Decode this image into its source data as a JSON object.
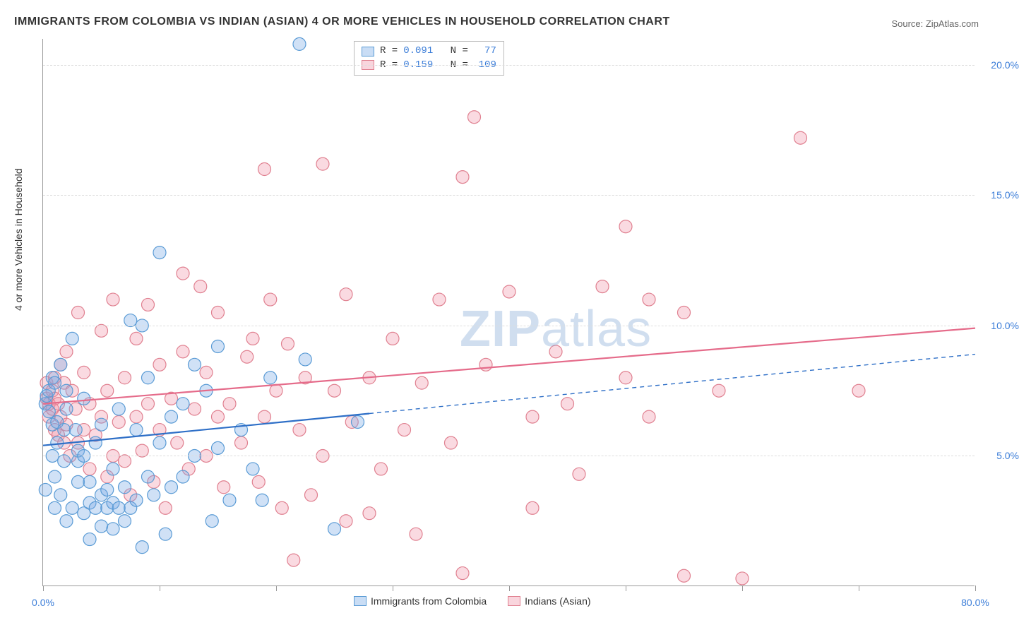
{
  "title": "IMMIGRANTS FROM COLOMBIA VS INDIAN (ASIAN) 4 OR MORE VEHICLES IN HOUSEHOLD CORRELATION CHART",
  "source": "Source: ZipAtlas.com",
  "watermark_a": "ZIP",
  "watermark_b": "atlas",
  "y_axis_label": "4 or more Vehicles in Household",
  "chart": {
    "type": "scatter",
    "background_color": "#ffffff",
    "grid_color": "#dddddd",
    "axis_color": "#999999",
    "xlim": [
      0,
      80
    ],
    "ylim": [
      0,
      21
    ],
    "x_ticks": [
      0,
      10,
      20,
      30,
      40,
      50,
      60,
      70,
      80
    ],
    "x_tick_labels": {
      "0": "0.0%",
      "80": "80.0%"
    },
    "y_ticks": [
      5,
      10,
      15,
      20
    ],
    "y_tick_labels": {
      "5": "5.0%",
      "10": "10.0%",
      "15": "15.0%",
      "20": "20.0%"
    },
    "tick_label_color": "#3b7dd8",
    "marker_radius": 9,
    "marker_stroke_width": 1.2,
    "series": {
      "blue": {
        "label": "Immigrants from Colombia",
        "fill": "rgba(120,170,230,0.35)",
        "stroke": "#5a9bd5",
        "R": "0.091",
        "N": "77",
        "regression": {
          "x1": 0,
          "y1": 5.4,
          "x2": 80,
          "y2": 8.9,
          "solid_until_x": 28,
          "color": "#2e6fc7",
          "width": 2.2
        },
        "points": [
          [
            0.2,
            7.0
          ],
          [
            0.3,
            7.3
          ],
          [
            0.5,
            6.7
          ],
          [
            0.5,
            7.5
          ],
          [
            0.8,
            6.2
          ],
          [
            0.8,
            8.0
          ],
          [
            0.8,
            5.0
          ],
          [
            1.0,
            4.2
          ],
          [
            1.0,
            3.0
          ],
          [
            1.0,
            7.8
          ],
          [
            1.2,
            5.5
          ],
          [
            1.2,
            6.3
          ],
          [
            1.5,
            8.5
          ],
          [
            1.5,
            3.5
          ],
          [
            1.8,
            4.8
          ],
          [
            1.8,
            6.0
          ],
          [
            2.0,
            2.5
          ],
          [
            2.0,
            6.8
          ],
          [
            2.0,
            7.5
          ],
          [
            0.2,
            3.7
          ],
          [
            2.5,
            3.0
          ],
          [
            2.5,
            9.5
          ],
          [
            2.8,
            6.0
          ],
          [
            3.0,
            4.0
          ],
          [
            3.0,
            4.8
          ],
          [
            3.0,
            5.2
          ],
          [
            3.5,
            2.8
          ],
          [
            3.5,
            5.0
          ],
          [
            3.5,
            7.2
          ],
          [
            4.0,
            3.2
          ],
          [
            4.0,
            4.0
          ],
          [
            4.0,
            1.8
          ],
          [
            4.5,
            3.0
          ],
          [
            4.5,
            5.5
          ],
          [
            5.0,
            2.3
          ],
          [
            5.0,
            3.5
          ],
          [
            5.0,
            6.2
          ],
          [
            5.5,
            3.0
          ],
          [
            5.5,
            3.7
          ],
          [
            6.0,
            2.2
          ],
          [
            6.0,
            3.2
          ],
          [
            6.0,
            4.5
          ],
          [
            6.5,
            3.0
          ],
          [
            6.5,
            6.8
          ],
          [
            7.0,
            2.5
          ],
          [
            7.0,
            3.8
          ],
          [
            7.5,
            10.2
          ],
          [
            7.5,
            3.0
          ],
          [
            8.0,
            3.3
          ],
          [
            8.0,
            6.0
          ],
          [
            8.5,
            1.5
          ],
          [
            8.5,
            10.0
          ],
          [
            9.0,
            4.2
          ],
          [
            9.0,
            8.0
          ],
          [
            9.5,
            3.5
          ],
          [
            10.0,
            5.5
          ],
          [
            10.0,
            12.8
          ],
          [
            10.5,
            2.0
          ],
          [
            11.0,
            3.8
          ],
          [
            11.0,
            6.5
          ],
          [
            12.0,
            4.2
          ],
          [
            12.0,
            7.0
          ],
          [
            13.0,
            5.0
          ],
          [
            13.0,
            8.5
          ],
          [
            14.0,
            7.5
          ],
          [
            14.5,
            2.5
          ],
          [
            15.0,
            5.3
          ],
          [
            15.0,
            9.2
          ],
          [
            16.0,
            3.3
          ],
          [
            17.0,
            6.0
          ],
          [
            18.0,
            4.5
          ],
          [
            18.8,
            3.3
          ],
          [
            19.5,
            8.0
          ],
          [
            22.0,
            20.8
          ],
          [
            22.5,
            8.7
          ],
          [
            25.0,
            2.2
          ],
          [
            27.0,
            6.3
          ]
        ]
      },
      "pink": {
        "label": "Indians (Asian)",
        "fill": "rgba(240,150,170,0.35)",
        "stroke": "#e08090",
        "R": "0.159",
        "N": "109",
        "regression": {
          "x1": 0,
          "y1": 7.0,
          "x2": 80,
          "y2": 9.9,
          "solid_until_x": 80,
          "color": "#e56b8a",
          "width": 2.2
        },
        "points": [
          [
            0.3,
            7.2
          ],
          [
            0.3,
            7.8
          ],
          [
            0.5,
            6.5
          ],
          [
            0.5,
            7.0
          ],
          [
            0.8,
            6.8
          ],
          [
            0.8,
            7.5
          ],
          [
            1.0,
            6.0
          ],
          [
            1.0,
            7.2
          ],
          [
            1.0,
            8.0
          ],
          [
            1.3,
            5.8
          ],
          [
            1.3,
            7.0
          ],
          [
            1.5,
            6.5
          ],
          [
            1.5,
            8.5
          ],
          [
            1.8,
            5.5
          ],
          [
            1.8,
            7.8
          ],
          [
            2.0,
            6.2
          ],
          [
            2.0,
            9.0
          ],
          [
            2.3,
            5.0
          ],
          [
            2.5,
            7.5
          ],
          [
            2.8,
            6.8
          ],
          [
            3.0,
            5.5
          ],
          [
            3.0,
            10.5
          ],
          [
            3.5,
            6.0
          ],
          [
            3.5,
            8.2
          ],
          [
            4.0,
            4.5
          ],
          [
            4.0,
            7.0
          ],
          [
            4.5,
            5.8
          ],
          [
            5.0,
            6.5
          ],
          [
            5.0,
            9.8
          ],
          [
            5.5,
            4.2
          ],
          [
            5.5,
            7.5
          ],
          [
            6.0,
            5.0
          ],
          [
            6.0,
            11.0
          ],
          [
            6.5,
            6.3
          ],
          [
            7.0,
            4.8
          ],
          [
            7.0,
            8.0
          ],
          [
            7.5,
            3.5
          ],
          [
            8.0,
            6.5
          ],
          [
            8.0,
            9.5
          ],
          [
            8.5,
            5.2
          ],
          [
            9.0,
            7.0
          ],
          [
            9.0,
            10.8
          ],
          [
            9.5,
            4.0
          ],
          [
            10.0,
            6.0
          ],
          [
            10.0,
            8.5
          ],
          [
            10.5,
            3.0
          ],
          [
            11.0,
            7.2
          ],
          [
            11.5,
            5.5
          ],
          [
            12.0,
            9.0
          ],
          [
            12.0,
            12.0
          ],
          [
            12.5,
            4.5
          ],
          [
            13.0,
            6.8
          ],
          [
            13.5,
            11.5
          ],
          [
            14.0,
            5.0
          ],
          [
            14.0,
            8.2
          ],
          [
            15.0,
            6.5
          ],
          [
            15.0,
            10.5
          ],
          [
            15.5,
            3.8
          ],
          [
            16.0,
            7.0
          ],
          [
            17.0,
            5.5
          ],
          [
            17.5,
            8.8
          ],
          [
            18.0,
            9.5
          ],
          [
            18.5,
            4.0
          ],
          [
            19.0,
            6.5
          ],
          [
            19.0,
            16.0
          ],
          [
            19.5,
            11.0
          ],
          [
            20.0,
            7.5
          ],
          [
            20.5,
            3.0
          ],
          [
            21.0,
            9.3
          ],
          [
            21.5,
            1.0
          ],
          [
            22.0,
            6.0
          ],
          [
            22.5,
            8.0
          ],
          [
            23.0,
            3.5
          ],
          [
            24.0,
            5.0
          ],
          [
            24.0,
            16.2
          ],
          [
            25.0,
            7.5
          ],
          [
            26.0,
            2.5
          ],
          [
            26.0,
            11.2
          ],
          [
            26.5,
            6.3
          ],
          [
            28.0,
            8.0
          ],
          [
            28.0,
            2.8
          ],
          [
            29.0,
            4.5
          ],
          [
            30.0,
            9.5
          ],
          [
            31.0,
            6.0
          ],
          [
            32.0,
            2.0
          ],
          [
            32.5,
            7.8
          ],
          [
            34.0,
            11.0
          ],
          [
            35.0,
            5.5
          ],
          [
            36.0,
            15.7
          ],
          [
            36.0,
            0.5
          ],
          [
            37.0,
            18.0
          ],
          [
            38.0,
            8.5
          ],
          [
            40.0,
            11.3
          ],
          [
            42.0,
            6.5
          ],
          [
            42.0,
            3.0
          ],
          [
            44.0,
            9.0
          ],
          [
            45.0,
            7.0
          ],
          [
            46.0,
            4.3
          ],
          [
            48.0,
            11.5
          ],
          [
            50.0,
            8.0
          ],
          [
            50.0,
            13.8
          ],
          [
            52.0,
            6.5
          ],
          [
            52.0,
            11.0
          ],
          [
            55.0,
            0.4
          ],
          [
            55.0,
            10.5
          ],
          [
            58.0,
            7.5
          ],
          [
            60.0,
            0.3
          ],
          [
            65.0,
            17.2
          ],
          [
            70.0,
            7.5
          ]
        ]
      }
    },
    "legend_top": {
      "r_label": "R =",
      "n_label": "N ="
    },
    "legend_bottom": {
      "blue_label": "Immigrants from Colombia",
      "pink_label": "Indians (Asian)"
    }
  }
}
